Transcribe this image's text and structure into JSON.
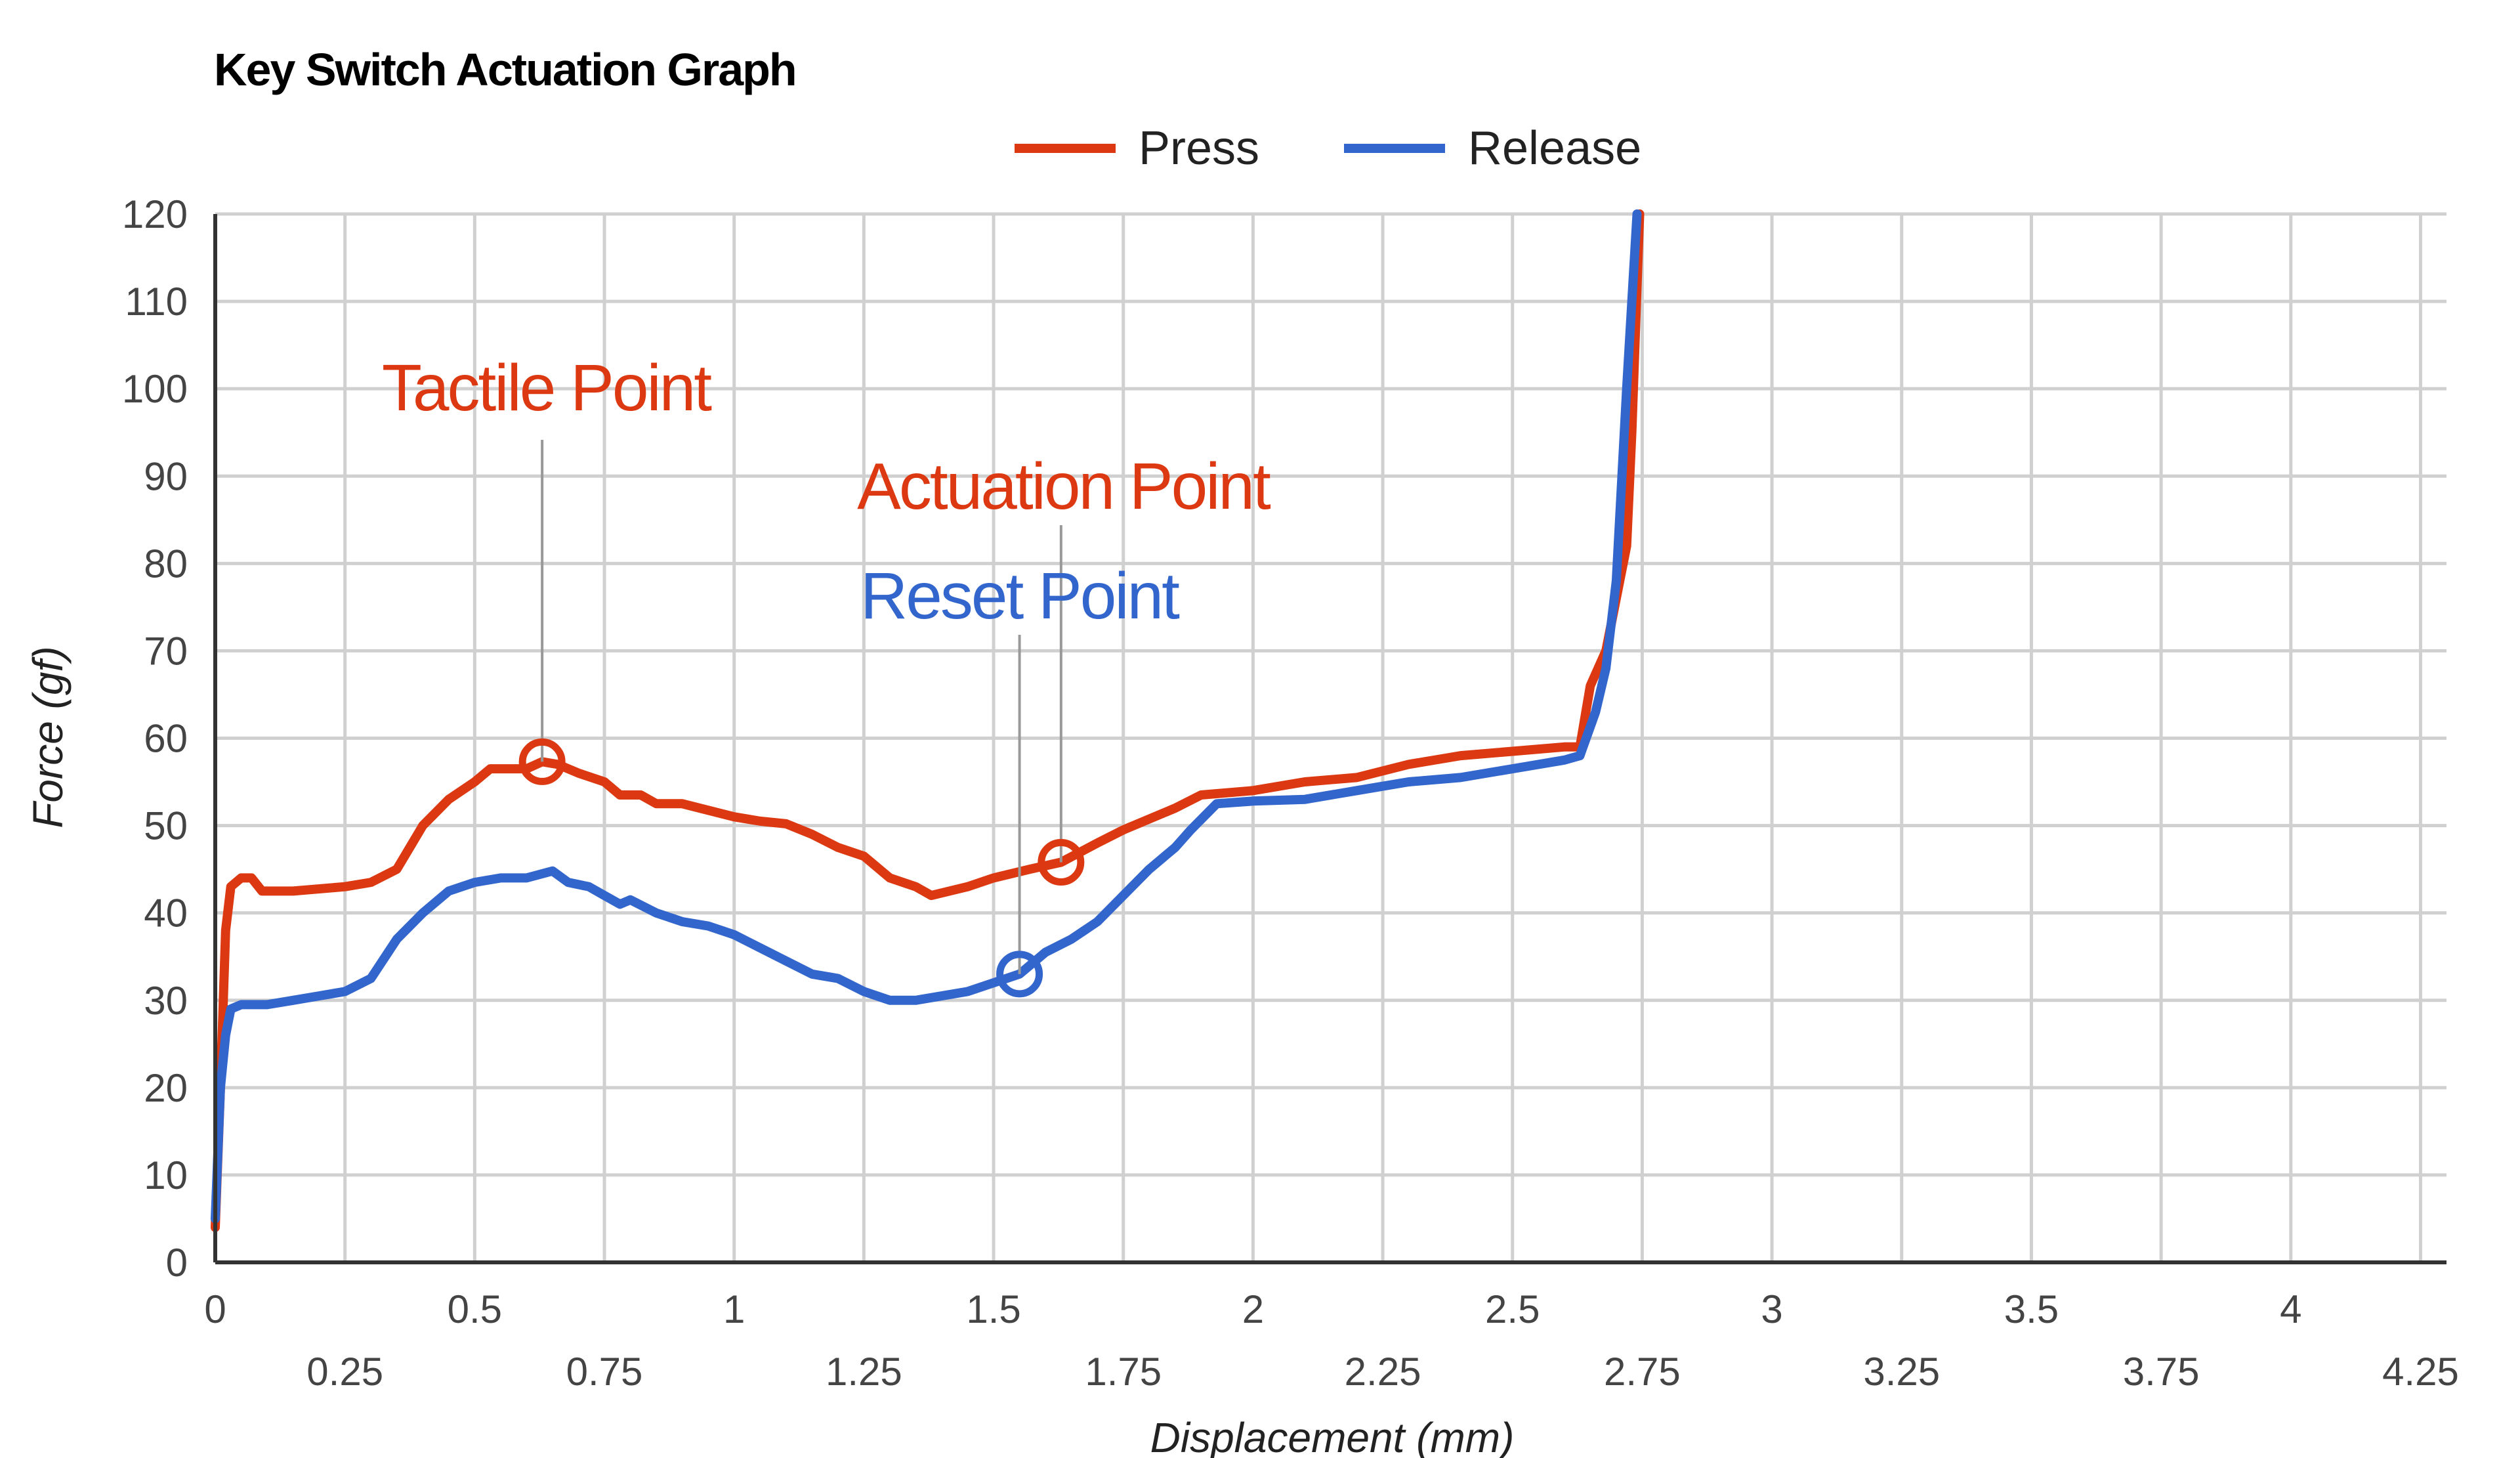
{
  "chart_data": {
    "type": "line",
    "title": "Key Switch Actuation Graph",
    "xlabel": "Displacement (mm)",
    "ylabel": "Force (gf)",
    "xlim": [
      0,
      4.3
    ],
    "ylim": [
      0,
      120
    ],
    "grid": true,
    "legend_position": "top",
    "x_ticks_major": [
      "0",
      "0.5",
      "1",
      "1.5",
      "2",
      "2.5",
      "3",
      "3.5",
      "4"
    ],
    "x_ticks_minor": [
      "0.25",
      "0.75",
      "1.25",
      "1.75",
      "2.25",
      "2.75",
      "3.25",
      "3.75",
      "4.25"
    ],
    "y_ticks": [
      "0",
      "10",
      "20",
      "30",
      "40",
      "50",
      "60",
      "70",
      "80",
      "90",
      "100",
      "110",
      "120"
    ],
    "series": [
      {
        "name": "Press",
        "color": "#dc3912",
        "points": [
          [
            0,
            4
          ],
          [
            0.01,
            20
          ],
          [
            0.02,
            38
          ],
          [
            0.03,
            43
          ],
          [
            0.05,
            44
          ],
          [
            0.07,
            44
          ],
          [
            0.09,
            42.5
          ],
          [
            0.15,
            42.5
          ],
          [
            0.25,
            43
          ],
          [
            0.3,
            43.5
          ],
          [
            0.35,
            45
          ],
          [
            0.4,
            50
          ],
          [
            0.45,
            53
          ],
          [
            0.5,
            55
          ],
          [
            0.53,
            56.5
          ],
          [
            0.6,
            56.5
          ],
          [
            0.63,
            57.3
          ],
          [
            0.66,
            57
          ],
          [
            0.7,
            56
          ],
          [
            0.75,
            55
          ],
          [
            0.78,
            53.5
          ],
          [
            0.82,
            53.5
          ],
          [
            0.85,
            52.5
          ],
          [
            0.9,
            52.5
          ],
          [
            1,
            51
          ],
          [
            1.05,
            50.5
          ],
          [
            1.1,
            50.2
          ],
          [
            1.15,
            49
          ],
          [
            1.2,
            47.5
          ],
          [
            1.25,
            46.5
          ],
          [
            1.3,
            44
          ],
          [
            1.35,
            43
          ],
          [
            1.38,
            42
          ],
          [
            1.45,
            43
          ],
          [
            1.5,
            44
          ],
          [
            1.57,
            45
          ],
          [
            1.63,
            45.8
          ],
          [
            1.7,
            48
          ],
          [
            1.75,
            49.5
          ],
          [
            1.85,
            52
          ],
          [
            1.9,
            53.5
          ],
          [
            2,
            54
          ],
          [
            2.1,
            55
          ],
          [
            2.2,
            55.5
          ],
          [
            2.3,
            57
          ],
          [
            2.4,
            58
          ],
          [
            2.5,
            58.5
          ],
          [
            2.6,
            59
          ],
          [
            2.63,
            59
          ],
          [
            2.65,
            66
          ],
          [
            2.68,
            70
          ],
          [
            2.7,
            76
          ],
          [
            2.72,
            82
          ],
          [
            2.73,
            95
          ],
          [
            2.745,
            120
          ]
        ]
      },
      {
        "name": "Release",
        "color": "#3366cc",
        "points": [
          [
            0,
            5
          ],
          [
            0.01,
            20
          ],
          [
            0.02,
            26
          ],
          [
            0.03,
            29
          ],
          [
            0.05,
            29.5
          ],
          [
            0.1,
            29.5
          ],
          [
            0.15,
            30
          ],
          [
            0.2,
            30.5
          ],
          [
            0.25,
            31
          ],
          [
            0.3,
            32.5
          ],
          [
            0.35,
            37
          ],
          [
            0.4,
            40
          ],
          [
            0.45,
            42.5
          ],
          [
            0.5,
            43.5
          ],
          [
            0.55,
            44
          ],
          [
            0.6,
            44
          ],
          [
            0.65,
            44.8
          ],
          [
            0.68,
            43.5
          ],
          [
            0.72,
            43
          ],
          [
            0.75,
            42
          ],
          [
            0.78,
            41
          ],
          [
            0.8,
            41.5
          ],
          [
            0.85,
            40
          ],
          [
            0.9,
            39
          ],
          [
            0.95,
            38.5
          ],
          [
            1,
            37.5
          ],
          [
            1.05,
            36
          ],
          [
            1.1,
            34.5
          ],
          [
            1.15,
            33
          ],
          [
            1.2,
            32.5
          ],
          [
            1.25,
            31
          ],
          [
            1.3,
            30
          ],
          [
            1.35,
            30
          ],
          [
            1.45,
            31
          ],
          [
            1.5,
            32
          ],
          [
            1.55,
            33
          ],
          [
            1.6,
            35.5
          ],
          [
            1.65,
            37
          ],
          [
            1.7,
            39
          ],
          [
            1.75,
            42
          ],
          [
            1.8,
            45
          ],
          [
            1.85,
            47.5
          ],
          [
            1.88,
            49.5
          ],
          [
            1.93,
            52.5
          ],
          [
            2,
            52.8
          ],
          [
            2.1,
            53
          ],
          [
            2.2,
            54
          ],
          [
            2.3,
            55
          ],
          [
            2.4,
            55.5
          ],
          [
            2.5,
            56.5
          ],
          [
            2.6,
            57.5
          ],
          [
            2.63,
            58
          ],
          [
            2.66,
            63
          ],
          [
            2.68,
            68
          ],
          [
            2.7,
            78
          ],
          [
            2.72,
            100
          ],
          [
            2.74,
            120
          ]
        ]
      }
    ],
    "annotations": [
      {
        "label": "Tactile Point",
        "x": 0.63,
        "y": 57.3,
        "color": "#dc3912"
      },
      {
        "label": "Actuation Point",
        "x": 1.63,
        "y": 45.8,
        "color": "#dc3912"
      },
      {
        "label": "Reset Point",
        "x": 1.55,
        "y": 33,
        "color": "#3366cc"
      }
    ]
  }
}
